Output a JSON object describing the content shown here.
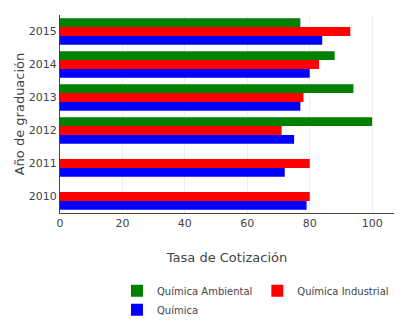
{
  "chart_data": {
    "type": "bar",
    "orientation": "horizontal",
    "xlabel": "Tasa de Cotización",
    "ylabel": "Año de graduación",
    "categories": [
      "2010",
      "2011",
      "2012",
      "2013",
      "2014",
      "2015"
    ],
    "series": [
      {
        "name": "Química Ambiental",
        "color": "#008000",
        "values": [
          null,
          null,
          100,
          94,
          88,
          77
        ]
      },
      {
        "name": "Química Industrial",
        "color": "#ff0000",
        "values": [
          80,
          80,
          71,
          78,
          83,
          93
        ]
      },
      {
        "name": "Química",
        "color": "#0000ff",
        "values": [
          79,
          72,
          75,
          77,
          80,
          84
        ]
      }
    ],
    "xlim": [
      0,
      107
    ],
    "xticks": [
      0,
      20,
      40,
      60,
      80,
      100
    ],
    "grid": true,
    "legend": "lower right"
  }
}
